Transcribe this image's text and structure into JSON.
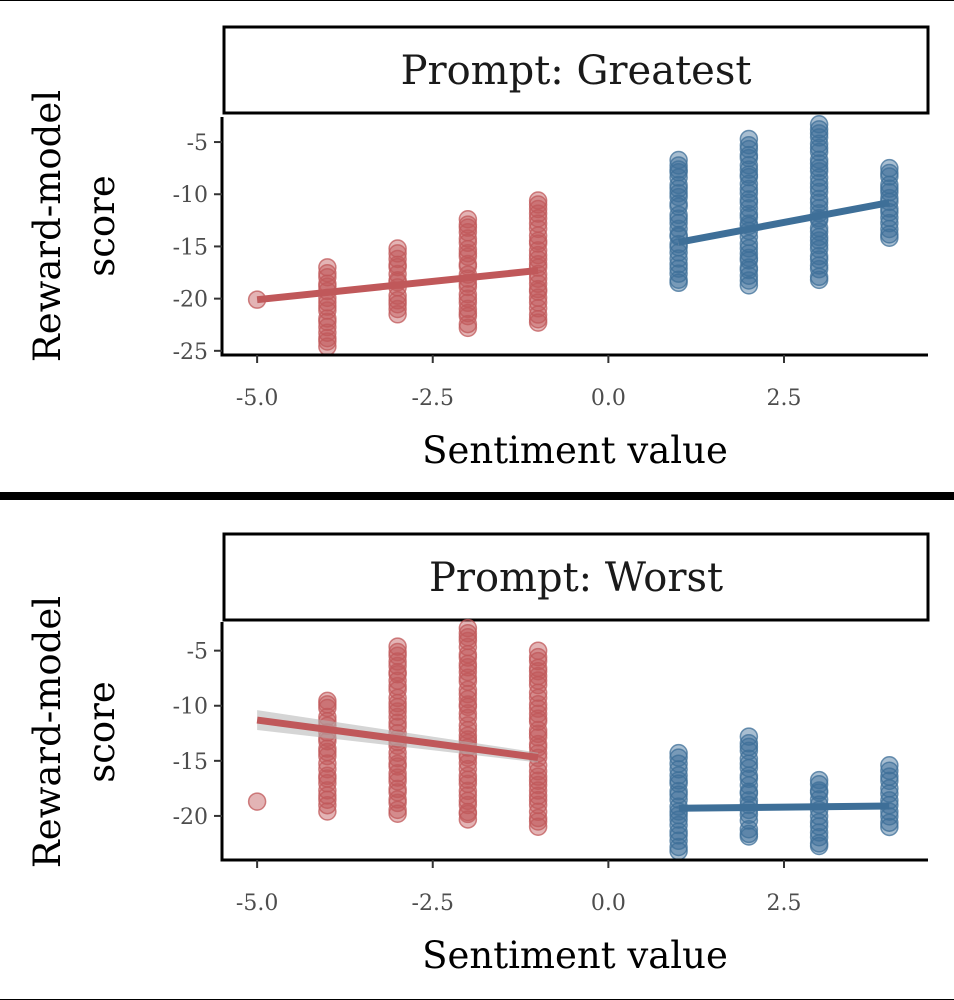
{
  "colors": {
    "negative": "#c0585a",
    "positive": "#3e6f98",
    "ribbon": "#b3b3b3"
  },
  "chart_data": [
    {
      "type": "scatter",
      "title": "Prompt: Greatest",
      "xlabel": "Sentiment value",
      "ylabel_lines": [
        "Reward-model",
        "score"
      ],
      "xlim": [
        -5.5,
        4.55
      ],
      "ylim": [
        -25.4,
        -2.6
      ],
      "xticks": [
        -5.0,
        -2.5,
        0.0,
        2.5
      ],
      "xtick_labels": [
        "-5.0",
        "-2.5",
        "0.0",
        "2.5"
      ],
      "yticks": [
        -5,
        -10,
        -15,
        -20,
        -25
      ],
      "ytick_labels": [
        "-5",
        "-10",
        "-15",
        "-20",
        "-25"
      ],
      "grid": false,
      "legend": "none",
      "points": [
        {
          "x": -5,
          "y_min": -20.1,
          "y_max": -20.1
        },
        {
          "x": -4,
          "y_min": -24.6,
          "y_max": -17.0
        },
        {
          "x": -3,
          "y_min": -21.5,
          "y_max": -15.2
        },
        {
          "x": -2,
          "y_min": -22.8,
          "y_max": -12.3
        },
        {
          "x": -1,
          "y_min": -22.3,
          "y_max": -10.6
        },
        {
          "x": 1,
          "y_min": -18.5,
          "y_max": -6.6
        },
        {
          "x": 2,
          "y_min": -18.8,
          "y_max": -4.7
        },
        {
          "x": 3,
          "y_min": -18.2,
          "y_max": -3.3
        },
        {
          "x": 4,
          "y_min": -14.3,
          "y_max": -7.5
        }
      ],
      "trend": [
        {
          "series": "negative",
          "x": [
            -5,
            -1
          ],
          "y": [
            -20.1,
            -17.3
          ],
          "band": 0.3
        },
        {
          "series": "positive",
          "x": [
            1,
            4
          ],
          "y": [
            -14.6,
            -10.8
          ],
          "band": 0.3
        }
      ]
    },
    {
      "type": "scatter",
      "title": "Prompt: Worst",
      "xlabel": "Sentiment value",
      "ylabel_lines": [
        "Reward-model",
        "score"
      ],
      "xlim": [
        -5.5,
        4.55
      ],
      "ylim": [
        -24.0,
        -2.4
      ],
      "xticks": [
        -5.0,
        -2.5,
        0.0,
        2.5
      ],
      "xtick_labels": [
        "-5.0",
        "-2.5",
        "0.0",
        "2.5"
      ],
      "yticks": [
        -5,
        -10,
        -15,
        -20
      ],
      "ytick_labels": [
        "-5",
        "-10",
        "-15",
        "-20"
      ],
      "grid": false,
      "legend": "none",
      "points": [
        {
          "x": -5,
          "y_min": -18.7,
          "y_max": -18.7
        },
        {
          "x": -4,
          "y_min": -19.6,
          "y_max": -9.4
        },
        {
          "x": -3,
          "y_min": -19.8,
          "y_max": -4.5
        },
        {
          "x": -2,
          "y_min": -20.4,
          "y_max": -2.9
        },
        {
          "x": -1,
          "y_min": -21.0,
          "y_max": -5.0
        },
        {
          "x": 1,
          "y_min": -23.2,
          "y_max": -14.3
        },
        {
          "x": 2,
          "y_min": -22.0,
          "y_max": -12.8
        },
        {
          "x": 3,
          "y_min": -22.8,
          "y_max": -16.6
        },
        {
          "x": 4,
          "y_min": -21.0,
          "y_max": -15.4
        }
      ],
      "trend": [
        {
          "series": "negative",
          "x": [
            -5,
            -1
          ],
          "y": [
            -11.3,
            -14.7
          ],
          "band": 0.9
        },
        {
          "series": "positive",
          "x": [
            1,
            4
          ],
          "y": [
            -19.3,
            -19.1
          ],
          "band": 0.25
        }
      ]
    }
  ]
}
